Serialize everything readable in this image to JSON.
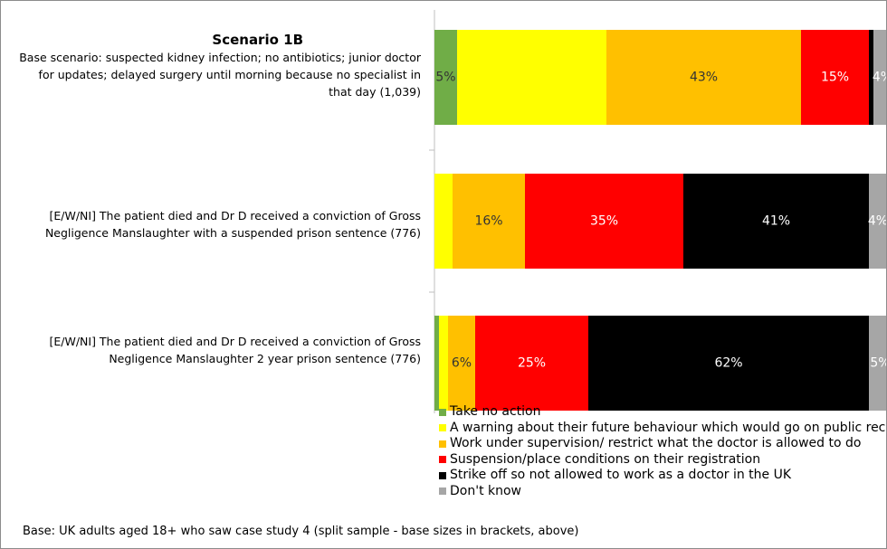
{
  "chart_data": {
    "type": "stacked_barh",
    "title": "Scenario 1B",
    "categories": [
      "Base scenario: suspected kidney infection; no antibiotics; junior doctor for updates; delayed surgery until morning because no specialist in that day (1,039)",
      "[E/W/NI] The patient died and Dr D received a conviction of Gross Negligence Manslaughter with a suspended prison sentence (776)",
      "[E/W/NI] The patient died and Dr D received a conviction of Gross Negligence Manslaughter 2 year prison sentence (776)"
    ],
    "xlim": [
      0,
      100
    ],
    "series": [
      {
        "name": "Take no action",
        "color": "#70ad47",
        "values": [
          5,
          0,
          1
        ],
        "value_labels": [
          "5%",
          null,
          null
        ]
      },
      {
        "name": "A warning about their future behaviour which would go on public record",
        "color": "#ffff00",
        "values": [
          33,
          4,
          2
        ]
      },
      {
        "name": "Work under supervision/ restrict what the doctor is allowed to do",
        "color": "#ffc000",
        "values": [
          43,
          16,
          6
        ],
        "value_labels": [
          "43%",
          "16%",
          "6%"
        ]
      },
      {
        "name": "Suspension/place conditions on their registration",
        "color": "#ff0000",
        "values": [
          15,
          35,
          25
        ],
        "value_labels": [
          "15%",
          "35%",
          "25%"
        ]
      },
      {
        "name": "Strike off so not allowed to work as a doctor in the UK",
        "color": "#000000",
        "values": [
          1,
          41,
          62
        ],
        "value_labels": [
          null,
          "41%",
          "62%"
        ]
      },
      {
        "name": "Don't know",
        "color": "#a6a6a6",
        "values": [
          4,
          4,
          5
        ],
        "value_labels": [
          "4%",
          "4%",
          "5%"
        ]
      }
    ],
    "note": "Base: UK adults aged 18+ who saw case study 4 (split sample - base sizes in brackets, above)"
  }
}
